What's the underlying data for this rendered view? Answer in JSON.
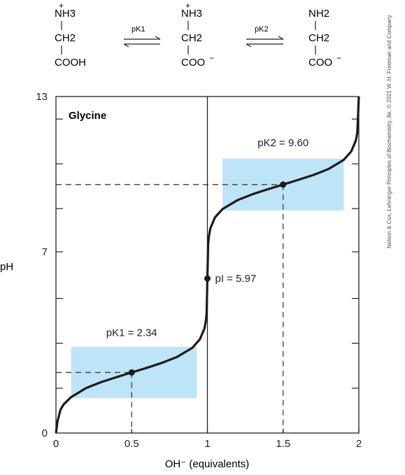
{
  "scheme": {
    "species": [
      {
        "top": "NH3",
        "top_charge": "+",
        "middle": "CH2",
        "bottom": "COOH",
        "bottom_charge": ""
      },
      {
        "top": "NH3",
        "top_charge": "+",
        "middle": "CH2",
        "bottom": "COO",
        "bottom_charge": "−"
      },
      {
        "top": "NH2",
        "top_charge": "",
        "middle": "CH2",
        "bottom": "COO",
        "bottom_charge": "−"
      }
    ],
    "arrow_labels": [
      "pK1",
      "pK2"
    ]
  },
  "credit": "Nelson & Cox, Lehninger Principles of Biochemistry, 8e, © 2021 W. H. Freeman and Company",
  "chart_data": {
    "type": "line",
    "title": "Glycine",
    "xlabel": "OH⁻ (equivalents)",
    "ylabel": "pH",
    "xlim": [
      0,
      2
    ],
    "ylim": [
      0,
      13
    ],
    "x_ticks": [
      0,
      0.5,
      1,
      1.5,
      2
    ],
    "x_tick_labels": [
      "0",
      "0.5",
      "1",
      "1.5",
      "2"
    ],
    "y_tick_labels": [
      {
        "value": 0,
        "label": "0"
      },
      {
        "value": 7,
        "label": "7"
      },
      {
        "value": 13,
        "label": "13"
      }
    ],
    "y_minor_ticks": [
      1.73,
      3.47,
      5.2,
      8.67,
      10.4,
      12.13
    ],
    "grid": false,
    "series": [
      {
        "x": [
          0,
          0.01,
          0.03,
          0.05,
          0.1,
          0.2,
          0.3,
          0.4,
          0.5,
          0.6,
          0.7,
          0.8,
          0.9,
          0.95,
          0.98,
          0.99,
          0.995,
          1.0,
          1.005,
          1.01,
          1.02,
          1.05,
          1.1,
          1.2,
          1.3,
          1.4,
          1.5,
          1.6,
          1.7,
          1.8,
          1.9,
          1.95,
          1.98,
          1.99,
          2.0
        ],
        "y": [
          0.0,
          0.45,
          0.9,
          1.1,
          1.39,
          1.74,
          1.97,
          2.16,
          2.34,
          2.52,
          2.71,
          2.94,
          3.29,
          3.62,
          4.03,
          4.34,
          4.6,
          5.97,
          7.3,
          7.6,
          7.91,
          8.33,
          8.65,
          9.0,
          9.23,
          9.42,
          9.6,
          9.78,
          9.97,
          10.2,
          10.55,
          10.88,
          11.3,
          11.6,
          13.0
        ]
      }
    ],
    "highlight_boxes": [
      {
        "x": [
          0.1,
          0.93
        ],
        "y": [
          1.35,
          3.33
        ]
      },
      {
        "x": [
          1.1,
          1.9
        ],
        "y": [
          8.6,
          10.6
        ]
      }
    ],
    "points": [
      {
        "x": 0.5,
        "y": 2.34,
        "label": "pK1 = 2.34"
      },
      {
        "x": 1.0,
        "y": 5.97,
        "label": "pI = 5.97"
      },
      {
        "x": 1.5,
        "y": 9.6,
        "label": "pK2 = 9.60"
      }
    ],
    "vertical_line_x": 1,
    "colors": {
      "curve": "#1f1a17",
      "box": "#bde4f7",
      "axis": "#231f20",
      "dash": "#3c3c3c"
    }
  }
}
